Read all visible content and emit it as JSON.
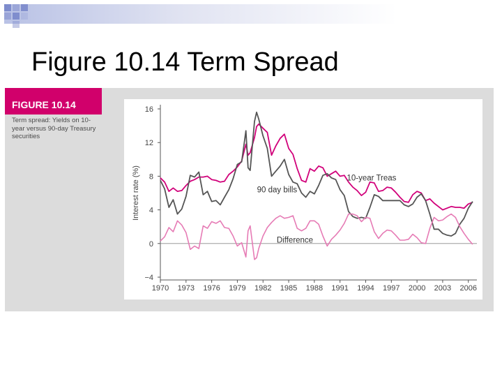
{
  "slide": {
    "title": "Figure 10.14 Term Spread"
  },
  "figure": {
    "label": "FIGURE 10.14",
    "caption": "Term spread: Yields on 10-year versus 90-day Treasury securities"
  },
  "colors": {
    "treas10": "#d1007a",
    "bills90": "#555555",
    "difference": "#e67bb5",
    "accent": "#d1006b"
  },
  "chart_data": {
    "type": "line",
    "title": "",
    "xlabel": "",
    "ylabel": "Interest rate (%)",
    "xlim": [
      1970,
      2007
    ],
    "ylim": [
      -4,
      16
    ],
    "x_ticks": [
      1970,
      1973,
      1976,
      1979,
      1982,
      1985,
      1988,
      1991,
      1994,
      1997,
      2000,
      2003,
      2006
    ],
    "y_ticks": [
      -4,
      0,
      4,
      8,
      12,
      16
    ],
    "x_tick_labels": [
      "1970",
      "1973",
      "1976",
      "1979",
      "1982",
      "1985",
      "1988",
      "1991",
      "1994",
      "1997",
      "2000",
      "2003",
      "2006"
    ],
    "y_tick_labels": [
      "−4",
      "0",
      "4",
      "8",
      "12",
      "16"
    ],
    "annotations": [
      "10-year Treas",
      "90 day bills",
      "Difference"
    ],
    "x": [
      1970,
      1970.5,
      1971,
      1971.5,
      1972,
      1972.5,
      1973,
      1973.5,
      1974,
      1974.5,
      1975,
      1975.5,
      1976,
      1976.5,
      1977,
      1977.5,
      1978,
      1978.5,
      1979,
      1979.5,
      1980,
      1980.25,
      1980.5,
      1981,
      1981.25,
      1981.5,
      1982,
      1982.5,
      1983,
      1983.5,
      1984,
      1984.5,
      1985,
      1985.5,
      1986,
      1986.5,
      1987,
      1987.5,
      1988,
      1988.5,
      1989,
      1989.5,
      1990,
      1990.5,
      1991,
      1991.5,
      1992,
      1992.5,
      1993,
      1993.5,
      1994,
      1994.5,
      1995,
      1995.5,
      1996,
      1996.5,
      1997,
      1997.5,
      1998,
      1998.5,
      1999,
      1999.5,
      2000,
      2000.5,
      2001,
      2001.5,
      2002,
      2002.5,
      2003,
      2003.5,
      2004,
      2004.5,
      2005,
      2005.5,
      2006,
      2006.5
    ],
    "series": [
      {
        "name": "10-year Treas",
        "values": [
          7.8,
          7.3,
          6.2,
          6.6,
          6.2,
          6.3,
          6.9,
          7.4,
          7.6,
          7.9,
          7.9,
          8.0,
          7.6,
          7.5,
          7.3,
          7.4,
          8.2,
          8.6,
          9.1,
          9.8,
          11.8,
          10.5,
          10.8,
          12.6,
          13.9,
          14.2,
          13.7,
          13.2,
          10.5,
          11.6,
          12.5,
          13.0,
          11.3,
          10.6,
          8.9,
          7.5,
          7.3,
          8.9,
          8.6,
          9.2,
          9.0,
          8.0,
          8.3,
          8.6,
          8.0,
          8.1,
          7.3,
          6.7,
          6.3,
          5.7,
          6.1,
          7.3,
          7.2,
          6.2,
          6.3,
          6.7,
          6.6,
          6.1,
          5.5,
          5.0,
          4.9,
          5.8,
          6.2,
          6.0,
          5.1,
          5.3,
          4.8,
          4.4,
          4.0,
          4.2,
          4.4,
          4.3,
          4.3,
          4.2,
          4.7,
          4.9
        ]
      },
      {
        "name": "90 day bills",
        "values": [
          7.5,
          6.5,
          4.3,
          5.2,
          3.5,
          4.1,
          5.6,
          8.1,
          7.9,
          8.5,
          5.8,
          6.2,
          5.0,
          5.1,
          4.6,
          5.5,
          6.4,
          7.7,
          9.4,
          9.7,
          13.4,
          9.0,
          8.7,
          14.5,
          15.6,
          14.8,
          12.8,
          11.3,
          8.0,
          8.6,
          9.2,
          10.0,
          8.2,
          7.3,
          7.1,
          6.0,
          5.5,
          6.2,
          5.9,
          6.9,
          8.1,
          8.3,
          7.8,
          7.6,
          6.4,
          5.7,
          3.8,
          3.2,
          3.0,
          3.1,
          3.0,
          4.3,
          5.8,
          5.6,
          5.1,
          5.1,
          5.1,
          5.1,
          5.1,
          4.6,
          4.4,
          4.7,
          5.5,
          5.9,
          5.1,
          3.5,
          1.7,
          1.7,
          1.2,
          1.0,
          0.9,
          1.2,
          2.3,
          3.0,
          4.2,
          5.0
        ]
      },
      {
        "name": "Difference",
        "values": [
          0.3,
          0.8,
          1.9,
          1.4,
          2.7,
          2.2,
          1.3,
          -0.7,
          -0.3,
          -0.6,
          2.1,
          1.8,
          2.6,
          2.4,
          2.7,
          1.9,
          1.8,
          0.9,
          -0.3,
          0.1,
          -1.6,
          1.5,
          2.1,
          -1.9,
          -1.7,
          -0.6,
          0.9,
          1.9,
          2.5,
          3.0,
          3.3,
          3.0,
          3.1,
          3.3,
          1.8,
          1.5,
          1.8,
          2.7,
          2.7,
          2.3,
          0.9,
          -0.3,
          0.5,
          1.0,
          1.6,
          2.4,
          3.5,
          3.5,
          3.3,
          2.6,
          3.1,
          3.0,
          1.4,
          0.6,
          1.2,
          1.6,
          1.5,
          1.0,
          0.4,
          0.4,
          0.5,
          1.1,
          0.7,
          0.1,
          0.0,
          1.8,
          3.1,
          2.7,
          2.8,
          3.2,
          3.5,
          3.1,
          2.0,
          1.2,
          0.5,
          -0.1
        ]
      }
    ]
  }
}
